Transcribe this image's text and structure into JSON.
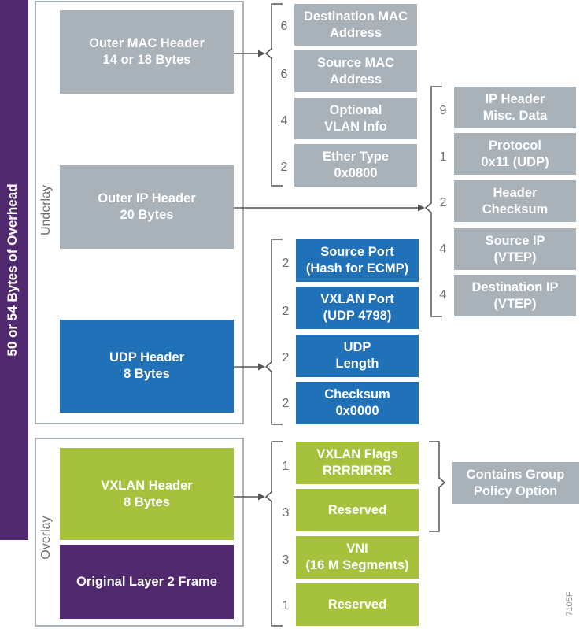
{
  "overhead_label": "50 or 54 Bytes of Overhead",
  "underlay_label": "Underlay",
  "overlay_label": "Overlay",
  "figure_id": "7105F",
  "colors": {
    "gray": "#a9b1b9",
    "blue": "#2071b8",
    "green": "#a6c23c",
    "purple": "#51296e"
  },
  "headers": {
    "outer_mac": "Outer MAC Header\n14 or 18 Bytes",
    "outer_ip": "Outer IP Header\n20 Bytes",
    "udp": "UDP Header\n8 Bytes",
    "vxlan": "VXLAN Header\n8 Bytes",
    "original_frame": "Original Layer 2 Frame"
  },
  "mac_fields": [
    {
      "size": "6",
      "label": "Destination MAC\nAddress"
    },
    {
      "size": "6",
      "label": "Source MAC\nAddress"
    },
    {
      "size": "4",
      "label": "Optional\nVLAN Info"
    },
    {
      "size": "2",
      "label": "Ether Type\n0x0800"
    }
  ],
  "ip_fields": [
    {
      "size": "9",
      "label": "IP Header\nMisc. Data"
    },
    {
      "size": "1",
      "label": "Protocol\n0x11 (UDP)"
    },
    {
      "size": "2",
      "label": "Header\nChecksum"
    },
    {
      "size": "4",
      "label": "Source IP\n(VTEP)"
    },
    {
      "size": "4",
      "label": "Destination IP\n(VTEP)"
    }
  ],
  "udp_fields": [
    {
      "size": "2",
      "label": "Source Port\n(Hash for ECMP)"
    },
    {
      "size": "2",
      "label": "VXLAN Port\n(UDP 4798)"
    },
    {
      "size": "2",
      "label": "UDP\nLength"
    },
    {
      "size": "2",
      "label": "Checksum\n0x0000"
    }
  ],
  "vxlan_fields": [
    {
      "size": "1",
      "label": "VXLAN Flags\nRRRRIRRR"
    },
    {
      "size": "3",
      "label": "Reserved"
    },
    {
      "size": "3",
      "label": "VNI\n(16 M Segments)"
    },
    {
      "size": "1",
      "label": "Reserved"
    }
  ],
  "group_policy_note": "Contains Group\nPolicy Option"
}
